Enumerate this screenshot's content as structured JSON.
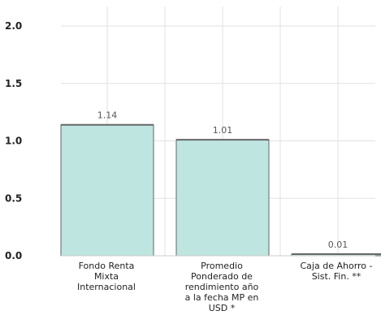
{
  "chart_data": {
    "type": "bar",
    "categories": [
      "Fondo Renta\nMixta\nInternacional",
      "Promedio\nPonderado de\nrendimiento año\na la fecha MP en\nUSD *",
      "Caja de Ahorro -\nSist. Fin. **"
    ],
    "values": [
      1.14,
      1.01,
      0.01
    ],
    "data_labels": [
      "1.14",
      "1.01",
      "0.01"
    ],
    "y_ticks": [
      "0.0",
      "0.5",
      "1.0",
      "1.5",
      "2.0"
    ],
    "ylim": [
      0,
      2.0
    ],
    "grid": true,
    "colors": {
      "bar_fill": "#bfe5e1",
      "bar_stroke": "#666666",
      "grid": "#e2e2e2",
      "axis": "#cccccc"
    }
  }
}
